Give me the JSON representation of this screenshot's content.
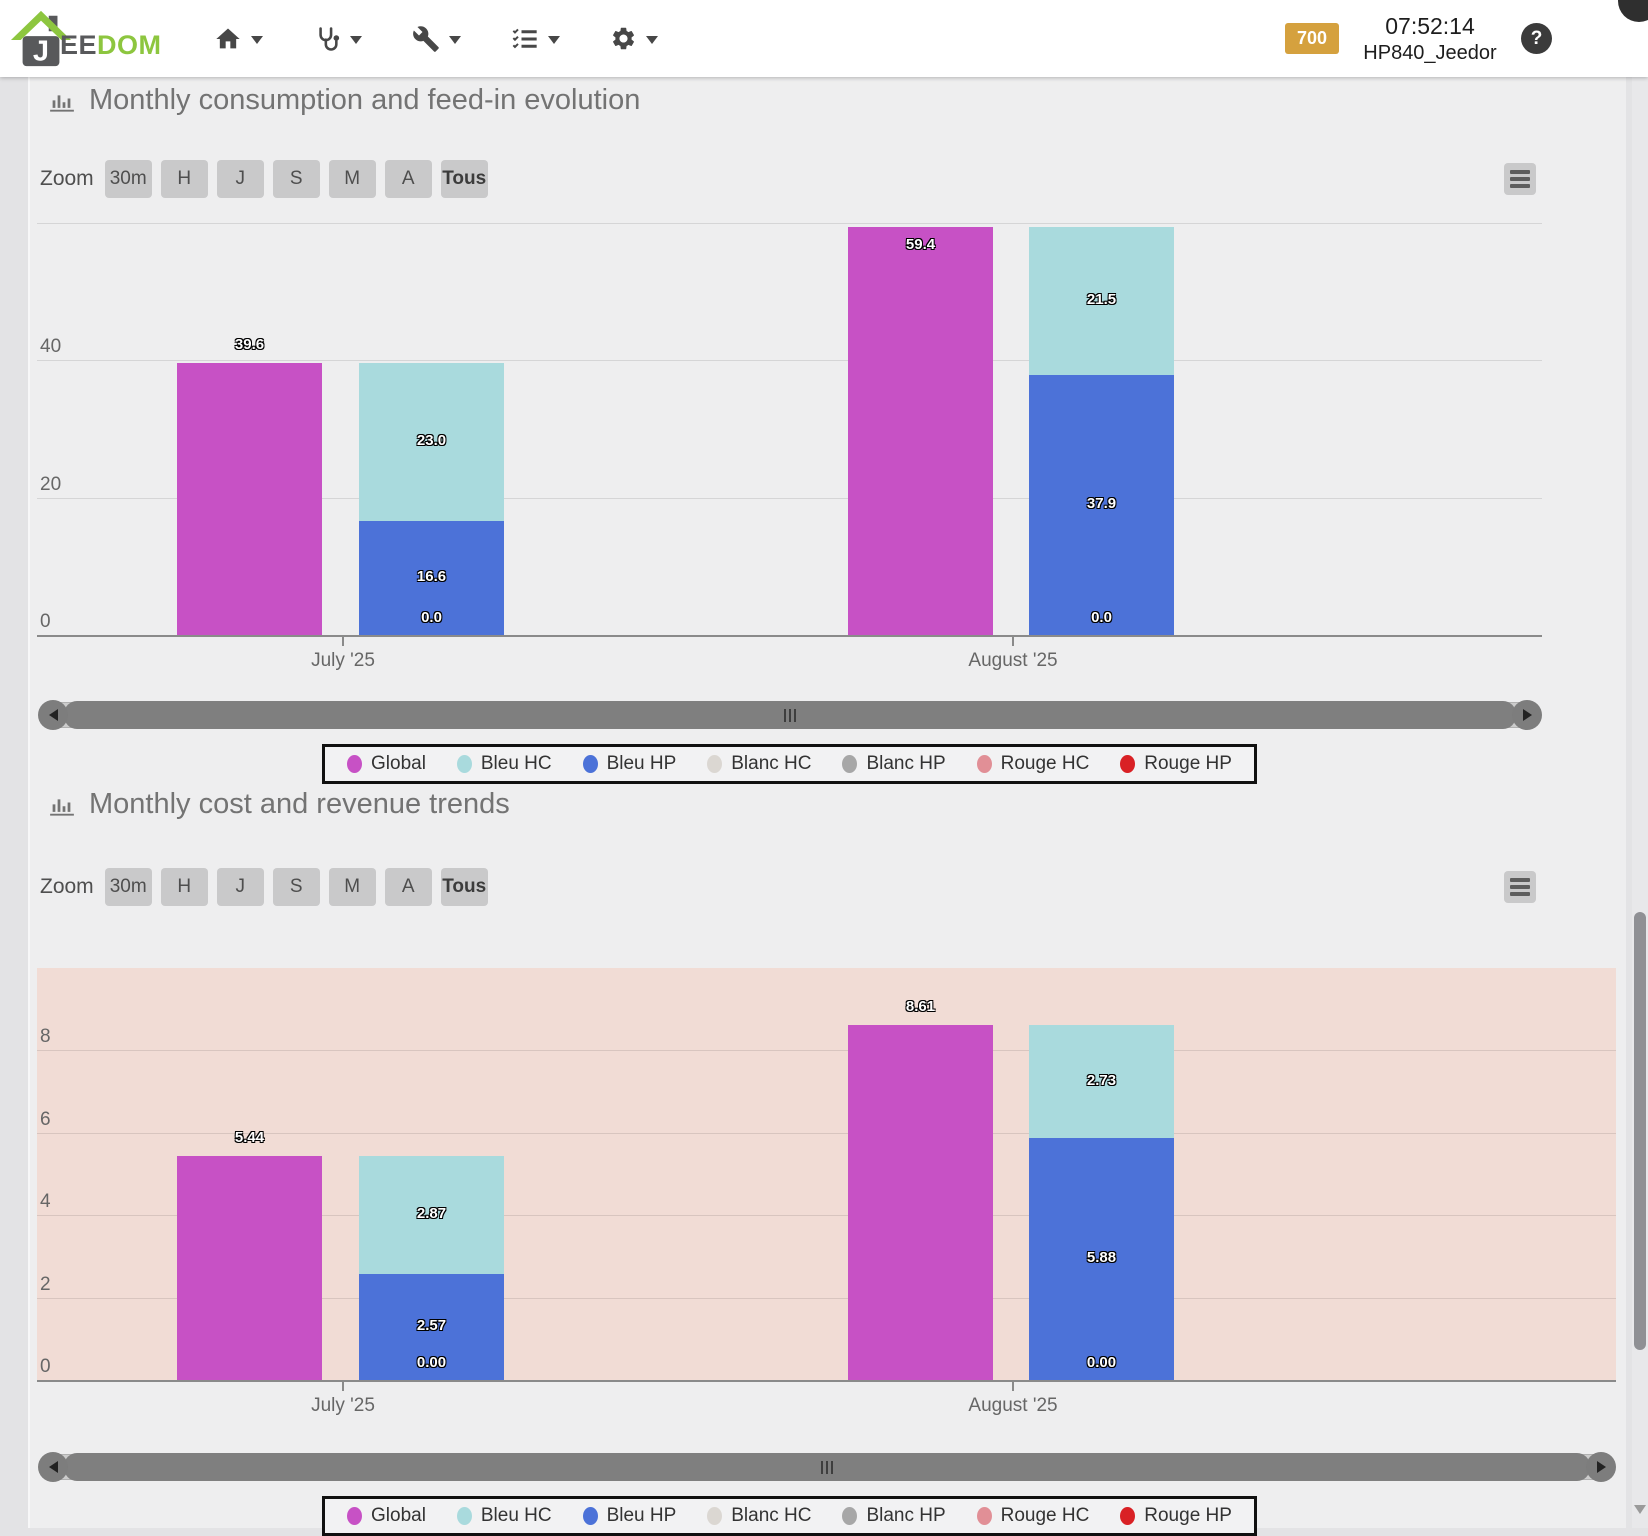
{
  "header": {
    "logo": {
      "dark": "EE",
      "green": "DOM"
    },
    "brand_colors": {
      "green": "#8dc63f",
      "gray": "#58595b"
    },
    "nav_items": [
      {
        "name": "home"
      },
      {
        "name": "health"
      },
      {
        "name": "tools"
      },
      {
        "name": "tasks"
      },
      {
        "name": "settings"
      }
    ],
    "badge": {
      "text": "700",
      "color": "#d5a13e"
    },
    "clock": "07:52:14",
    "hostname": "HP840_Jeedor",
    "help_label": "?"
  },
  "zoom_controls": {
    "label": "Zoom",
    "buttons": [
      "30m",
      "H",
      "J",
      "S",
      "M",
      "A",
      "Tous"
    ],
    "active": "Tous"
  },
  "legend": {
    "items": [
      {
        "label": "Global",
        "color": "#c751c5"
      },
      {
        "label": "Bleu HC",
        "color": "#a9dadd"
      },
      {
        "label": "Bleu HP",
        "color": "#4c72d8"
      },
      {
        "label": "Blanc HC",
        "color": "#dbd7d2"
      },
      {
        "label": "Blanc HP",
        "color": "#a7a7a7"
      },
      {
        "label": "Rouge HC",
        "color": "#e18f96"
      },
      {
        "label": "Rouge HP",
        "color": "#d92125"
      }
    ]
  },
  "chart_data": [
    {
      "type": "bar",
      "stacked": true,
      "title": "Monthly consumption and feed-in evolution",
      "categories": [
        "July '25",
        "August '25"
      ],
      "ylim": [
        0,
        62
      ],
      "yticks": [
        {
          "value": 0,
          "label": "0"
        },
        {
          "value": 20,
          "label": "20"
        },
        {
          "value": 40,
          "label": "40"
        }
      ],
      "gridlines": [
        20,
        40,
        60
      ],
      "plot_bg": "#eeeeef",
      "series": [
        {
          "name": "Global",
          "color": "#c751c5",
          "values": [
            39.6,
            59.4
          ],
          "labels": [
            "39.6",
            "59.4"
          ],
          "role": "solo"
        },
        {
          "name": "Bleu HC",
          "color": "#a9dadd",
          "values": [
            23.0,
            21.5
          ],
          "labels": [
            "23.0",
            "21.5"
          ],
          "role": "stack-top"
        },
        {
          "name": "Bleu HP",
          "color": "#4c72d8",
          "values": [
            16.6,
            37.9
          ],
          "labels": [
            "16.6",
            "37.9"
          ],
          "role": "stack-bottom"
        },
        {
          "name": "Blanc HC",
          "color": "#dbd7d2",
          "values": [
            0,
            0
          ],
          "labels": null,
          "role": "zero"
        },
        {
          "name": "Blanc HP",
          "color": "#a7a7a7",
          "values": [
            0,
            0
          ],
          "labels": null,
          "role": "zero"
        },
        {
          "name": "Rouge HC",
          "color": "#e18f96",
          "values": [
            0,
            0
          ],
          "labels": null,
          "role": "zero"
        },
        {
          "name": "Rouge HP",
          "color": "#d92125",
          "values": [
            0,
            0
          ],
          "labels": null,
          "role": "zero"
        }
      ],
      "stack_zero_labels": [
        "0.0",
        "0.0"
      ]
    },
    {
      "type": "bar",
      "stacked": true,
      "title": "Monthly cost and revenue trends",
      "categories": [
        "July '25",
        "August '25"
      ],
      "ylim": [
        0,
        10
      ],
      "yticks": [
        {
          "value": 0,
          "label": "0"
        },
        {
          "value": 2,
          "label": "2"
        },
        {
          "value": 4,
          "label": "4"
        },
        {
          "value": 6,
          "label": "6"
        },
        {
          "value": 8,
          "label": "8"
        }
      ],
      "gridlines": [
        2,
        4,
        6,
        8
      ],
      "plot_bg": "#f1dcd5",
      "series": [
        {
          "name": "Global",
          "color": "#c751c5",
          "values": [
            5.44,
            8.61
          ],
          "labels": [
            "5.44",
            "8.61"
          ],
          "role": "solo"
        },
        {
          "name": "Bleu HC",
          "color": "#a9dadd",
          "values": [
            2.87,
            2.73
          ],
          "labels": [
            "2.87",
            "2.73"
          ],
          "role": "stack-top"
        },
        {
          "name": "Bleu HP",
          "color": "#4c72d8",
          "values": [
            2.57,
            5.88
          ],
          "labels": [
            "2.57",
            "5.88"
          ],
          "role": "stack-bottom"
        },
        {
          "name": "Blanc HC",
          "color": "#dbd7d2",
          "values": [
            0,
            0
          ],
          "labels": null,
          "role": "zero"
        },
        {
          "name": "Blanc HP",
          "color": "#a7a7a7",
          "values": [
            0,
            0
          ],
          "labels": null,
          "role": "zero"
        },
        {
          "name": "Rouge HC",
          "color": "#e18f96",
          "values": [
            0,
            0
          ],
          "labels": null,
          "role": "zero"
        },
        {
          "name": "Rouge HP",
          "color": "#d92125",
          "values": [
            0,
            0
          ],
          "labels": null,
          "role": "zero"
        }
      ],
      "stack_zero_labels": [
        "0.00",
        "0.00"
      ]
    }
  ]
}
